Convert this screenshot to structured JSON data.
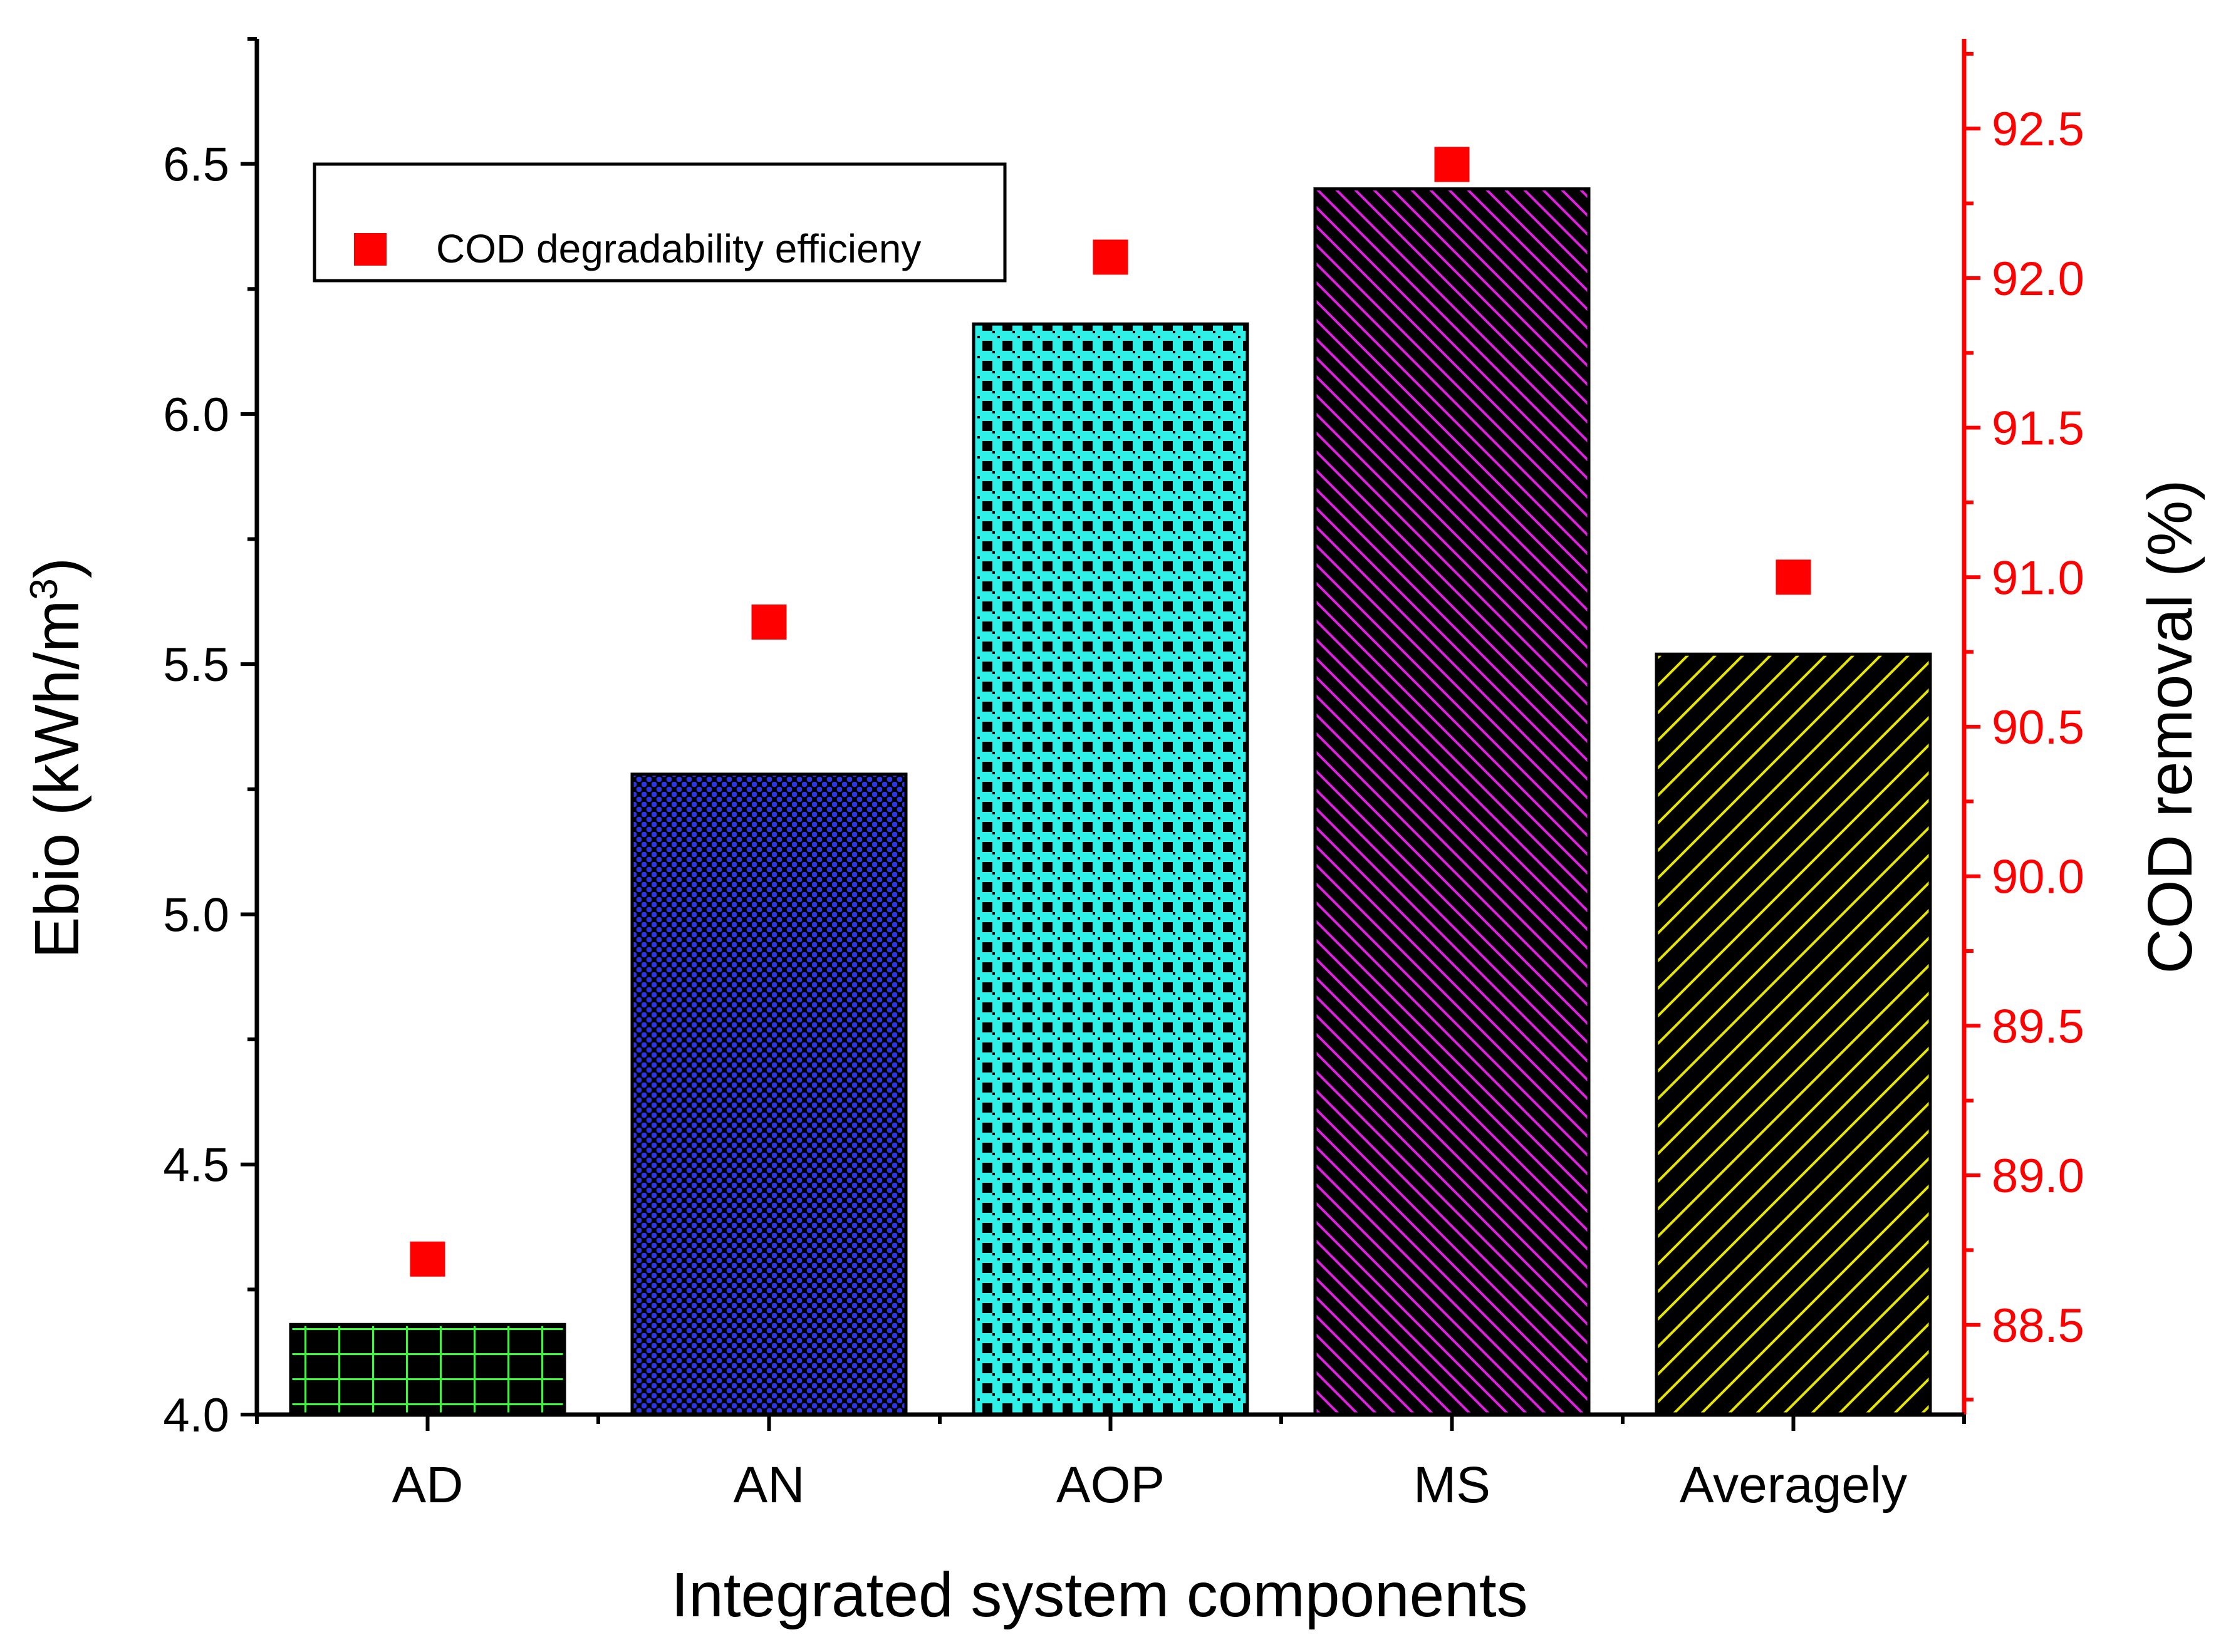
{
  "chart_data": {
    "type": "bar",
    "title": "",
    "categories": [
      "AD",
      "AN",
      "AOP",
      "MS",
      "Averagely"
    ],
    "series": [
      {
        "name": "Ebio",
        "axis": "left",
        "values": [
          4.18,
          5.28,
          6.18,
          6.45,
          5.52
        ],
        "patterns": [
          "grid-green",
          "dots-blue",
          "checker-cyan",
          "hatch-magenta",
          "hatch-yellow"
        ]
      },
      {
        "name": "COD degradability efficieny",
        "axis": "right",
        "type": "scatter",
        "marker": "square",
        "color": "#ff0000",
        "values": [
          88.72,
          90.85,
          92.07,
          92.38,
          91.0
        ]
      }
    ],
    "xlabel": "Integrated system components",
    "ylabel": {
      "prefix": "Ebio (kWh/m",
      "sup": "3",
      "suffix": ")"
    },
    "y2label": "COD removal (%)",
    "ylim": [
      4.0,
      6.75
    ],
    "y2lim": [
      88.2,
      92.8
    ],
    "yticks": [
      "4.0",
      "4.5",
      "5.0",
      "5.5",
      "6.0",
      "6.5"
    ],
    "y2ticks": [
      "88.5",
      "89.0",
      "89.5",
      "90.0",
      "90.5",
      "91.0",
      "91.5",
      "92.0",
      "92.5"
    ],
    "legend": {
      "label": "COD degradability efficieny",
      "position": "top-left"
    },
    "colors": {
      "right_axis": "#ff0000",
      "marker": "#ff0000",
      "grid_green": "#33ff33",
      "dots_blue": "#2a35e8",
      "checker_cyan": "#2ff0e6",
      "hatch_magenta": "#e020e0",
      "hatch_yellow": "#e6e600"
    }
  }
}
